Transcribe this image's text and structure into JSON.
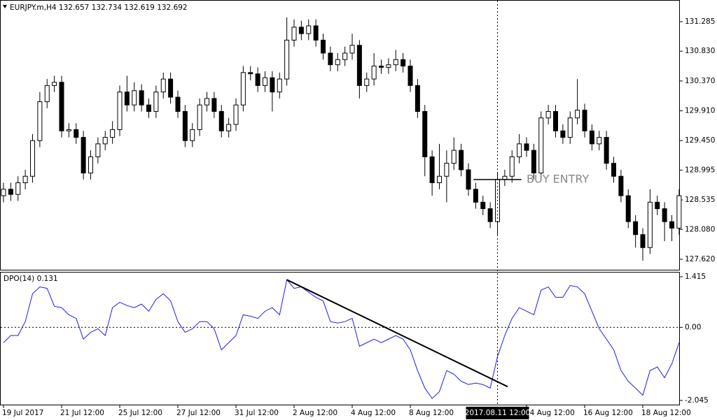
{
  "chart_data": [
    {
      "type": "candlestick",
      "title": "EURJPY.m,H4  132.657 132.734 132.619 132.692",
      "categories": [
        "19 Jul 2017",
        null,
        null,
        null,
        null,
        null,
        null,
        null,
        "21 Jul 12:00",
        null,
        null,
        null,
        null,
        null,
        null,
        null,
        "25 Jul 12:00",
        null,
        null,
        null,
        null,
        null,
        null,
        null,
        "27 Jul 12:00",
        null,
        null,
        null,
        null,
        null,
        null,
        null,
        "31 Jul 12:00",
        null,
        null,
        null,
        null,
        null,
        null,
        null,
        "2 Aug 12:00",
        null,
        null,
        null,
        null,
        null,
        null,
        null,
        "4 Aug 12:00",
        null,
        null,
        null,
        null,
        null,
        null,
        null,
        "8 Aug 12:00",
        null,
        null,
        null,
        null,
        null,
        null,
        null,
        null,
        null,
        null,
        null,
        null,
        null,
        null,
        null,
        "14 Aug 12:00",
        null,
        null,
        null,
        null,
        null,
        null,
        null,
        "16 Aug 12:00",
        null,
        null,
        null,
        null,
        null,
        null,
        null,
        "18 Aug 12:00",
        null,
        null,
        null,
        null,
        null
      ],
      "open": [
        128.6,
        128.7,
        128.62,
        128.8,
        128.9,
        129.45,
        130.05,
        130.3,
        130.35,
        129.6,
        129.62,
        129.5,
        128.95,
        129.2,
        129.4,
        129.5,
        129.62,
        130.2,
        130.0,
        130.22,
        130.0,
        129.9,
        130.2,
        130.4,
        130.12,
        129.9,
        129.45,
        129.62,
        130.0,
        130.1,
        129.9,
        129.6,
        129.7,
        130.0,
        130.5,
        130.48,
        130.3,
        130.42,
        130.2,
        130.4,
        131.0,
        131.2,
        131.1,
        131.22,
        131.0,
        130.8,
        130.62,
        130.7,
        130.8,
        130.92,
        130.3,
        130.4,
        130.6,
        130.58,
        130.62,
        130.7,
        130.6,
        130.3,
        129.9,
        129.2,
        128.8,
        128.9,
        129.1,
        129.3,
        129.0,
        128.7,
        128.5,
        128.4,
        128.2,
        128.85,
        128.9,
        129.2,
        129.4,
        129.3,
        128.95,
        129.8,
        129.9,
        129.6,
        129.5,
        129.8,
        129.92,
        129.6,
        129.4,
        129.5,
        129.1,
        128.9,
        128.6,
        128.2,
        128.0,
        127.8,
        128.5,
        128.4,
        128.2,
        128.1
      ],
      "high": [
        128.8,
        128.8,
        128.9,
        129.0,
        129.55,
        130.2,
        130.4,
        130.45,
        130.45,
        129.72,
        129.72,
        129.6,
        129.3,
        129.5,
        129.6,
        129.75,
        130.3,
        130.45,
        130.35,
        130.32,
        130.1,
        130.3,
        130.5,
        130.5,
        130.22,
        130.0,
        129.72,
        130.1,
        130.2,
        130.2,
        130.0,
        129.8,
        130.1,
        130.6,
        130.6,
        130.58,
        130.52,
        130.52,
        130.5,
        131.35,
        131.32,
        131.3,
        131.32,
        131.32,
        131.1,
        130.9,
        130.8,
        130.9,
        131.1,
        131.0,
        130.5,
        130.8,
        130.7,
        130.72,
        130.85,
        130.8,
        130.7,
        130.4,
        130.0,
        129.3,
        129.4,
        129.3,
        129.5,
        129.4,
        129.1,
        128.8,
        128.6,
        128.5,
        128.95,
        129.0,
        129.3,
        129.55,
        129.5,
        129.4,
        129.9,
        130.0,
        130.0,
        129.7,
        129.9,
        130.4,
        130.02,
        129.7,
        129.6,
        129.6,
        129.2,
        129.0,
        128.7,
        128.3,
        128.1,
        128.7,
        128.6,
        128.5,
        128.3,
        128.7
      ],
      "low": [
        128.5,
        128.52,
        128.52,
        128.7,
        128.8,
        129.35,
        129.95,
        130.2,
        129.5,
        129.5,
        129.4,
        128.85,
        128.85,
        129.1,
        129.3,
        129.4,
        129.52,
        129.9,
        129.9,
        129.9,
        129.8,
        129.8,
        130.1,
        130.02,
        129.8,
        129.35,
        129.35,
        129.52,
        129.9,
        129.8,
        129.5,
        129.5,
        129.6,
        129.9,
        130.38,
        130.2,
        130.2,
        129.9,
        130.1,
        130.3,
        130.9,
        131.0,
        131.0,
        130.9,
        130.7,
        130.52,
        130.52,
        130.6,
        130.7,
        130.1,
        130.2,
        130.3,
        130.48,
        130.48,
        130.52,
        130.5,
        130.2,
        129.8,
        128.9,
        128.6,
        128.7,
        128.5,
        129.0,
        128.9,
        128.6,
        128.4,
        128.3,
        128.1,
        128.0,
        128.75,
        128.8,
        129.1,
        129.2,
        128.85,
        128.85,
        129.7,
        129.5,
        129.4,
        129.4,
        129.7,
        129.5,
        129.3,
        129.3,
        129.0,
        128.8,
        128.5,
        128.1,
        127.8,
        127.6,
        127.7,
        128.3,
        127.9,
        127.9,
        128.0
      ],
      "close": [
        128.7,
        128.62,
        128.8,
        128.9,
        129.45,
        130.05,
        130.3,
        130.35,
        129.6,
        129.62,
        129.5,
        128.95,
        129.2,
        129.4,
        129.5,
        129.62,
        130.2,
        130.0,
        130.22,
        130.0,
        129.9,
        130.2,
        130.4,
        130.12,
        129.9,
        129.45,
        129.62,
        130.0,
        130.1,
        129.9,
        129.6,
        129.7,
        130.0,
        130.5,
        130.48,
        130.3,
        130.42,
        130.2,
        130.4,
        131.0,
        131.2,
        131.1,
        131.22,
        131.0,
        130.8,
        130.62,
        130.7,
        130.8,
        130.92,
        130.3,
        130.4,
        130.6,
        130.58,
        130.62,
        130.7,
        130.6,
        130.3,
        129.9,
        129.2,
        128.8,
        128.9,
        129.1,
        129.3,
        129.0,
        128.7,
        128.5,
        128.4,
        128.2,
        128.85,
        128.9,
        129.2,
        129.4,
        129.3,
        128.95,
        129.8,
        129.9,
        129.6,
        129.5,
        129.8,
        129.92,
        129.6,
        129.4,
        129.5,
        129.1,
        128.9,
        128.6,
        128.2,
        128.0,
        127.8,
        128.5,
        128.4,
        128.2,
        128.1,
        128.6
      ],
      "color": "#000000",
      "ylim": [
        127.458,
        131.619
      ],
      "yticks": [
        131.285,
        {
          "value": 130.83,
          "label": "130.830"
        },
        {
          "value": 130.37,
          "label": "130.370"
        },
        {
          "value": 129.91,
          "label": "129.910"
        },
        {
          "value": 129.45,
          "label": "129.450"
        },
        128.995,
        128.535,
        {
          "value": 128.08,
          "label": "128.080"
        },
        {
          "value": 127.62,
          "label": "127.620"
        }
      ],
      "buy_entry": {
        "label": "BUY ENTRY",
        "price": 128.85
      },
      "crosshair": "2017.08.11 12:00"
    },
    {
      "type": "line",
      "title": "DPO(14) 0.131",
      "series": [
        {
          "color": "#1c1cf0",
          "values": [
            -0.43,
            -0.23,
            -0.23,
            0.16,
            0.94,
            1.13,
            1.09,
            0.59,
            0.55,
            0.35,
            0.25,
            -0.33,
            -0.14,
            -0.04,
            -0.23,
            0.55,
            0.7,
            0.61,
            0.55,
            0.65,
            0.45,
            0.78,
            0.94,
            0.74,
            0.16,
            -0.14,
            -0.04,
            0.16,
            0.16,
            -0.04,
            -0.63,
            -0.43,
            -0.23,
            0.35,
            0.31,
            0.25,
            0.45,
            0.55,
            0.35,
            1.33,
            1.09,
            1.13,
            0.98,
            0.84,
            0.74,
            0.16,
            0.12,
            0.16,
            0.25,
            -0.53,
            -0.43,
            -0.33,
            -0.43,
            -0.33,
            -0.23,
            -0.33,
            -0.63,
            -1.21,
            -1.7,
            -1.99,
            -1.8,
            -1.21,
            -1.31,
            -1.51,
            -1.6,
            -1.56,
            -1.6,
            -1.7,
            -0.82,
            -0.23,
            0.25,
            0.55,
            0.45,
            0.35,
            1.04,
            1.13,
            0.84,
            0.84,
            1.17,
            1.13,
            0.94,
            0.45,
            -0.04,
            -0.33,
            -0.63,
            -1.21,
            -1.51,
            -1.7,
            -1.9,
            -1.21,
            -1.11,
            -1.41,
            -1.02,
            -0.43
          ]
        }
      ],
      "ylim": [
        -2.182,
        1.532
      ],
      "yticks": [
        1.415,
        {
          "value": 0,
          "label": "0.00"
        },
        -2.045
      ],
      "trendline": {
        "x": [
          39,
          69.4
        ],
        "y": [
          1.33,
          -1.66
        ]
      }
    }
  ]
}
